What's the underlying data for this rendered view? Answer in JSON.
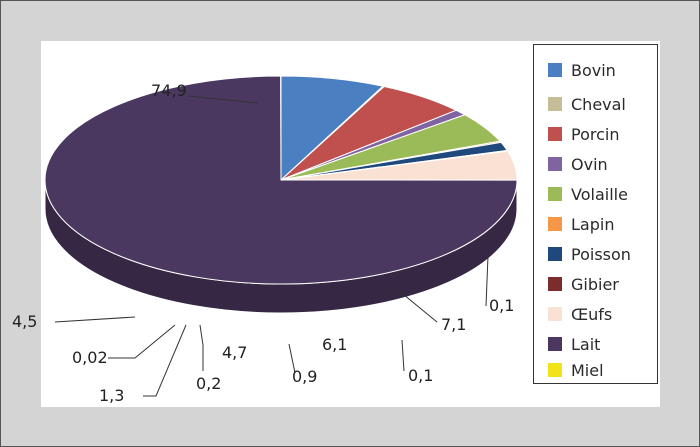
{
  "chart_data": {
    "type": "pie",
    "style": "3d-exploded-pie",
    "title": "",
    "categories": [
      "Bovin",
      "Cheval",
      "Porcin",
      "Ovin",
      "Volaille",
      "Lapin",
      "Poisson",
      "Gibier",
      "Œufs",
      "Lait",
      "Miel"
    ],
    "values": [
      7.1,
      0.1,
      6.1,
      0.9,
      4.7,
      0.2,
      1.3,
      0.1,
      4.5,
      74.9,
      0.02
    ],
    "value_labels": [
      "7,1",
      "0,1",
      "6,1",
      "0,9",
      "4,7",
      "0,2",
      "1,3",
      "0,1",
      "4,5",
      "74,9",
      "0,02"
    ],
    "colors": [
      "#4a7fc1",
      "#c4bd97",
      "#c0504d",
      "#8064a2",
      "#9bbb59",
      "#f79646",
      "#1f497d",
      "#7b2c2c",
      "#f9e2d4",
      "#4b3860",
      "#f2e218"
    ],
    "legend_position": "right"
  },
  "legend": {
    "items": [
      {
        "label": "Bovin"
      },
      {
        "label": "Cheval"
      },
      {
        "label": "Porcin"
      },
      {
        "label": "Ovin"
      },
      {
        "label": "Volaille"
      },
      {
        "label": "Lapin"
      },
      {
        "label": "Poisson"
      },
      {
        "label": "Gibier"
      },
      {
        "label": "Œufs"
      },
      {
        "label": "Lait"
      },
      {
        "label": "Miel"
      }
    ]
  }
}
